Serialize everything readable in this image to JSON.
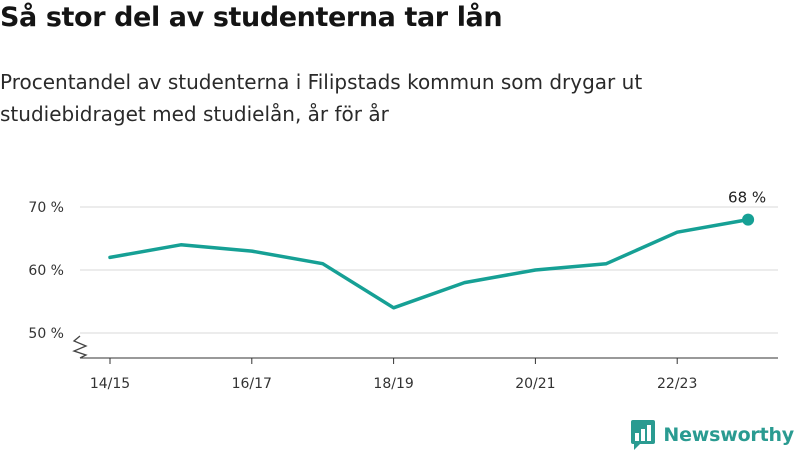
{
  "header": {
    "title": "Så stor del av studenterna tar lån",
    "subtitle": "Procentandel av studenterna i Filipstads kommun som drygar ut studiebidraget med studielån, år för år"
  },
  "chart_data": {
    "type": "line",
    "x": [
      "14/15",
      "15/16",
      "16/17",
      "17/18",
      "18/19",
      "19/20",
      "20/21",
      "21/22",
      "22/23",
      "23/24"
    ],
    "x_tick_labels": [
      "14/15",
      "16/17",
      "18/19",
      "20/21",
      "22/23"
    ],
    "series": [
      {
        "values": [
          62,
          64,
          63,
          61,
          54,
          58,
          60,
          61,
          66,
          68
        ]
      }
    ],
    "y_ticks": [
      50,
      60,
      70
    ],
    "y_tick_labels": [
      "50 %",
      "60 %",
      "70 %"
    ],
    "ylim": [
      50,
      70
    ],
    "axis_break": true,
    "grid": true,
    "last_value_label": "68 %",
    "line_color": "#16a095",
    "grid_color": "#d9d9d9"
  },
  "brand": {
    "name": "Newsworthy",
    "logo_icon": "bar-chart-bubble-icon",
    "color": "#2a9b91"
  }
}
